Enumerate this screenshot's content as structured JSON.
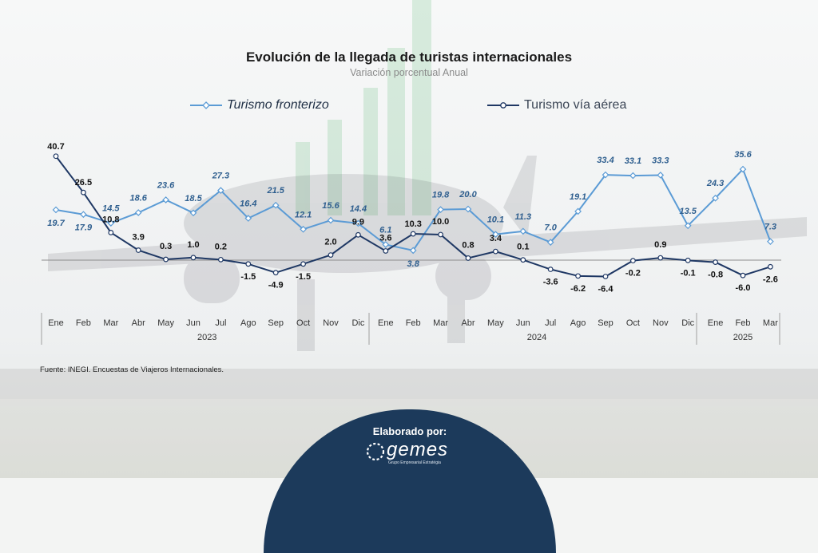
{
  "chart_data": {
    "type": "line",
    "title": "Evolución de la llegada de turistas internacionales",
    "subtitle": "Variación porcentual Anual",
    "categories": [
      "Ene",
      "Feb",
      "Mar",
      "Abr",
      "May",
      "Jun",
      "Jul",
      "Ago",
      "Sep",
      "Oct",
      "Nov",
      "Dic",
      "Ene",
      "Feb",
      "Mar",
      "Abr",
      "May",
      "Jun",
      "Jul",
      "Ago",
      "Sep",
      "Oct",
      "Nov",
      "Dic",
      "Ene",
      "Feb",
      "Mar"
    ],
    "year_groups": [
      {
        "label": "2023",
        "start": 0,
        "end": 11
      },
      {
        "label": "2024",
        "start": 12,
        "end": 23
      },
      {
        "label": "2025",
        "start": 24,
        "end": 26
      }
    ],
    "series": [
      {
        "name": "Turismo fronterizo",
        "color": "#5b9bd5",
        "label_color": "#2f5f8f",
        "values": [
          19.7,
          17.9,
          14.5,
          18.6,
          23.6,
          18.5,
          27.3,
          16.4,
          21.5,
          12.1,
          15.6,
          14.4,
          6.1,
          3.8,
          19.8,
          20.0,
          10.1,
          11.3,
          7.0,
          19.1,
          33.4,
          33.1,
          33.3,
          13.5,
          24.3,
          35.6,
          7.3
        ]
      },
      {
        "name": "Turismo vía aérea",
        "color": "#1f3864",
        "label_color": "#111111",
        "values": [
          40.7,
          26.5,
          10.8,
          3.9,
          0.3,
          1.0,
          0.2,
          -1.5,
          -4.9,
          -1.5,
          2.0,
          9.9,
          3.6,
          10.3,
          10.0,
          0.8,
          3.4,
          0.1,
          -3.6,
          -6.2,
          -6.4,
          -0.2,
          0.9,
          -0.1,
          -0.8,
          -6.0,
          -2.6
        ]
      }
    ],
    "ylim": [
      -10,
      45
    ],
    "grid": false,
    "legend_position": "top"
  },
  "source_note": "Fuente: INEGI. Encuestas de Viajeros Internacionales.",
  "footer": {
    "label": "Elaborado por:",
    "brand": "gemes",
    "brand_sub": "Grupo Empresarial Estratégia"
  }
}
